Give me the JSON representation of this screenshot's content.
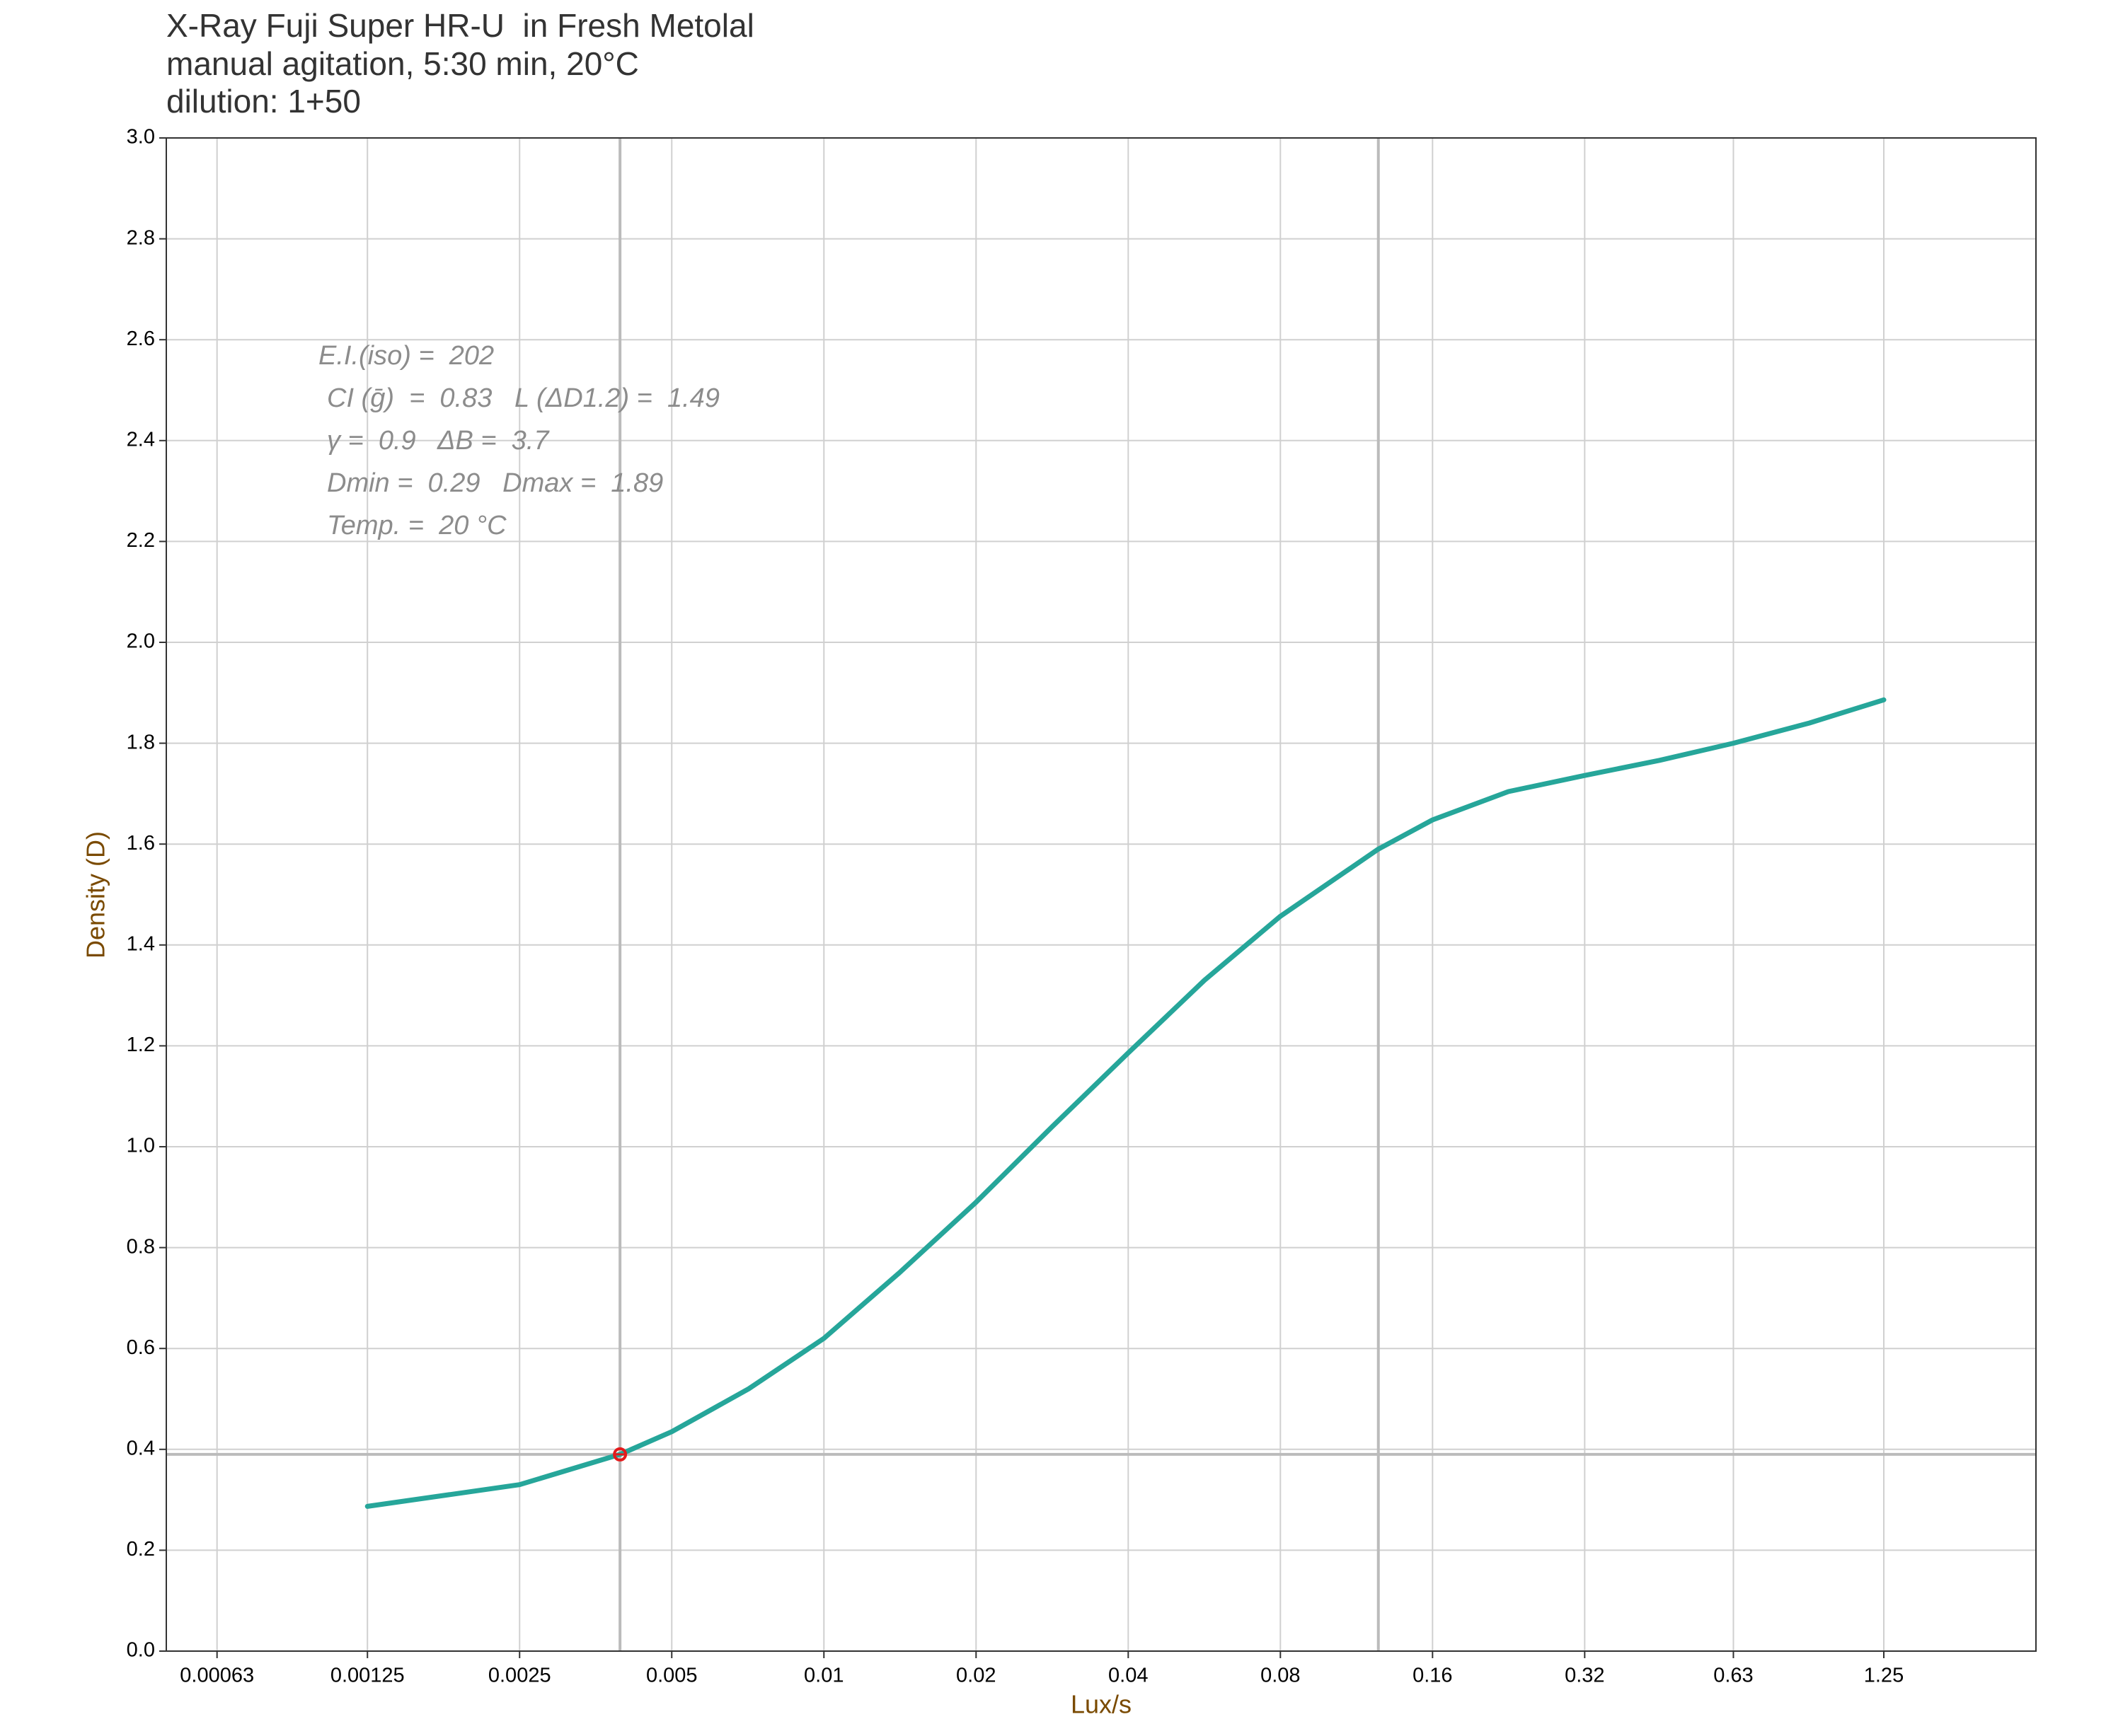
{
  "chart_data": {
    "type": "line",
    "title": "X-Ray Fuji Super HR-U  in Fresh Metolal",
    "subtitle": [
      "manual agitation, 5:30 min, 20°C",
      "dilution: 1+50"
    ],
    "x_label": "Lux/s",
    "y_label": "Density (D)",
    "x_scale": "log",
    "grid": true,
    "xlim": [
      0.0005,
      2.5
    ],
    "ylim": [
      0,
      3
    ],
    "xticks": [
      0.00063,
      0.00125,
      0.0025,
      0.005,
      0.01,
      0.02,
      0.04,
      0.08,
      0.16,
      0.32,
      0.63,
      1.25
    ],
    "yticks": [
      {
        "value": 0,
        "label": "0.0"
      },
      0.2,
      0.4,
      0.6,
      0.8,
      {
        "value": 1,
        "label": "1.0"
      },
      1.2,
      1.4,
      1.6,
      1.8,
      {
        "value": 2,
        "label": "2.0"
      },
      2.2,
      2.4,
      2.6,
      2.8,
      {
        "value": 3,
        "label": "3.0"
      }
    ],
    "x": [
      0.00125,
      0.0025,
      0.00395,
      0.005,
      0.0071,
      0.01,
      0.0141,
      0.02,
      0.0283,
      0.04,
      0.0566,
      0.08,
      0.125,
      0.16,
      0.226,
      0.32,
      0.45,
      0.63,
      0.89,
      1.25
    ],
    "series": [
      {
        "color": "#26a69a",
        "values": [
          0.287,
          0.33,
          0.39,
          0.435,
          0.52,
          0.62,
          0.75,
          0.89,
          1.04,
          1.186,
          1.33,
          1.457,
          1.59,
          1.648,
          1.704,
          1.736,
          1.766,
          1.8,
          1.84,
          1.886
        ]
      }
    ],
    "reference_lines": {
      "x": [
        0.00395,
        0.125
      ],
      "y": [
        0.39
      ],
      "color": "#bbbbbb"
    },
    "points": [
      {
        "x": 0.00395,
        "y": 0.39,
        "color": "#e41a1c"
      }
    ],
    "annotations": [
      "E.I.(iso) =  202",
      "CI (ḡ)  =  0.83   L (ΔD1.2) =  1.49",
      "γ =  0.9   ΔB =  3.7",
      "Dmin =  0.29   Dmax =  1.89",
      "Temp. =  20 °C"
    ]
  }
}
